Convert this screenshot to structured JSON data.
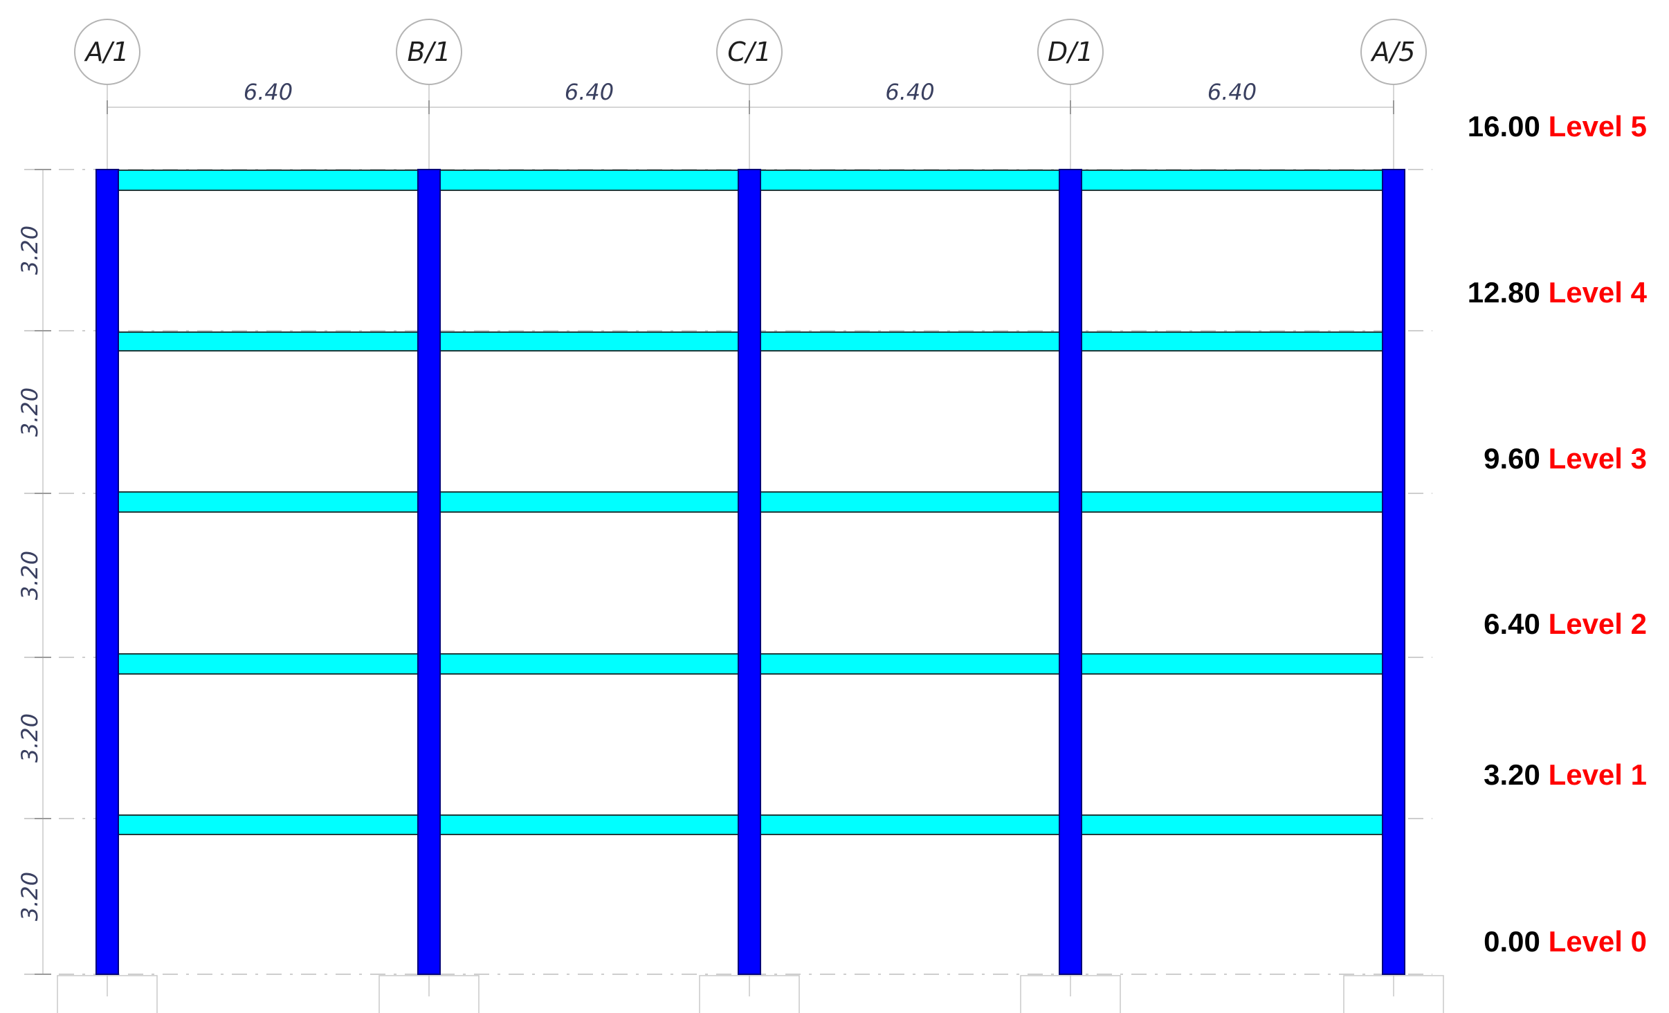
{
  "grid_lines": [
    {
      "label": "A/1"
    },
    {
      "label": "B/1"
    },
    {
      "label": "C/1"
    },
    {
      "label": "D/1"
    },
    {
      "label": "A/5"
    }
  ],
  "bay_dimensions": [
    "6.40",
    "6.40",
    "6.40",
    "6.40"
  ],
  "story_dimensions": [
    "3.20",
    "3.20",
    "3.20",
    "3.20",
    "3.20"
  ],
  "levels": [
    {
      "elevation": "0.00",
      "name": "Level 0"
    },
    {
      "elevation": "3.20",
      "name": "Level 1"
    },
    {
      "elevation": "6.40",
      "name": "Level 2"
    },
    {
      "elevation": "9.60",
      "name": "Level 3"
    },
    {
      "elevation": "12.80",
      "name": "Level 4"
    },
    {
      "elevation": "16.00",
      "name": "Level 5"
    }
  ],
  "colors": {
    "column": "#0000ff",
    "beam": "#00ffff",
    "level_name": "#ff0000",
    "elevation": "#000000"
  }
}
